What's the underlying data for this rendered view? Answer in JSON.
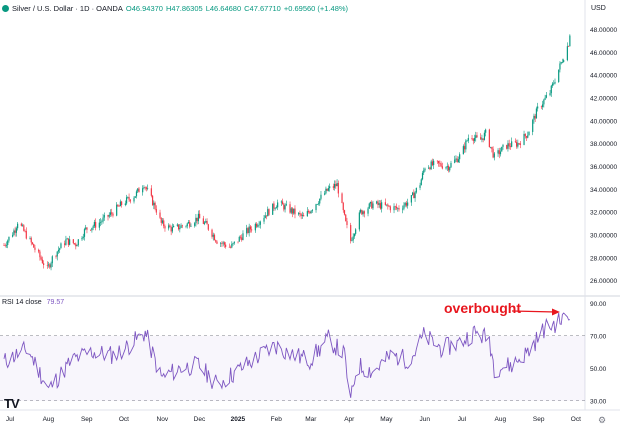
{
  "header": {
    "instrument": "Silver / U.S. Dollar · 1D · OANDA",
    "open": "O46.94370",
    "high": "H47.86305",
    "low": "L46.64680",
    "close": "C47.67710",
    "change": "+0.69560 (+1.48%)"
  },
  "currency_label": "USD",
  "rsi": {
    "label": "RSI 14 close",
    "value": "79.57"
  },
  "annotation": "overbought",
  "logo": "TV",
  "colors": {
    "up": "#089981",
    "down": "#f23645",
    "rsi": "#7e57c2",
    "annotation": "#e8161e"
  },
  "chart_data": [
    {
      "type": "candlestick",
      "title": "",
      "x_ticks": [
        "Jul",
        "Aug",
        "Sep",
        "Oct",
        "Nov",
        "Dec",
        "2025",
        "Feb",
        "Mar",
        "Apr",
        "May",
        "Jun",
        "Jul",
        "Aug",
        "Sep",
        "Oct"
      ],
      "y_ticks": [
        "26.00000",
        "28.00000",
        "30.00000",
        "32.00000",
        "34.00000",
        "36.00000",
        "38.00000",
        "40.00000",
        "42.00000",
        "44.00000",
        "46.00000",
        "48.00000"
      ],
      "ylim": [
        25,
        49
      ],
      "close_path_x": [
        "2024-07-01",
        "2024-07-10",
        "2024-07-12",
        "2024-07-20",
        "2024-08-05",
        "2024-08-10",
        "2024-08-20",
        "2024-08-28",
        "2024-09-05",
        "2024-09-15",
        "2024-09-25",
        "2024-10-05",
        "2024-10-15",
        "2024-10-22",
        "2024-11-01",
        "2024-11-05",
        "2024-11-14",
        "2024-11-25",
        "2024-12-05",
        "2024-12-12",
        "2024-12-20",
        "2024-12-31",
        "2025-01-10",
        "2025-01-20",
        "2025-01-30",
        "2025-02-07",
        "2025-02-15",
        "2025-02-28",
        "2025-03-10",
        "2025-03-20",
        "2025-03-27",
        "2025-04-03",
        "2025-04-07",
        "2025-04-15",
        "2025-04-25",
        "2025-05-05",
        "2025-05-15",
        "2025-05-25",
        "2025-06-02",
        "2025-06-06",
        "2025-06-15",
        "2025-06-25",
        "2025-07-05",
        "2025-07-12",
        "2025-07-20",
        "2025-07-25",
        "2025-08-01",
        "2025-08-10",
        "2025-08-20",
        "2025-08-28",
        "2025-09-05",
        "2025-09-15",
        "2025-09-22",
        "2025-09-30",
        "2025-10-01"
      ],
      "close_path_y": [
        29.1,
        30.5,
        31.2,
        29.8,
        27.0,
        28.2,
        29.5,
        29.2,
        30.5,
        31.0,
        31.8,
        32.8,
        33.5,
        34.5,
        32.2,
        31.0,
        30.5,
        30.9,
        31.5,
        30.8,
        29.5,
        28.9,
        30.0,
        30.9,
        32.0,
        32.8,
        32.3,
        31.5,
        32.8,
        34.0,
        34.4,
        31.0,
        29.5,
        32.0,
        32.7,
        32.5,
        32.3,
        33.0,
        34.5,
        36.0,
        36.2,
        36.0,
        37.0,
        38.8,
        38.2,
        38.9,
        36.8,
        37.8,
        38.0,
        38.9,
        41.0,
        42.5,
        44.5,
        46.8,
        47.68
      ],
      "series": [
        {
          "values_from": "close_path",
          "style": "candles"
        }
      ]
    },
    {
      "type": "line",
      "title": "",
      "ylabel": "RSI 14 close",
      "y_ticks": [
        "30.00",
        "50.00",
        "70.00",
        "90.00"
      ],
      "reference_lines": [
        30,
        70
      ],
      "ylim": [
        28,
        92
      ],
      "x": [
        "2024-07",
        "2024-07-20",
        "2024-08-06",
        "2024-08-25",
        "2024-09-10",
        "2024-09-28",
        "2024-10-10",
        "2024-10-23",
        "2024-11-05",
        "2024-11-20",
        "2024-12-05",
        "2024-12-20",
        "2025-01-05",
        "2025-01-20",
        "2025-02-05",
        "2025-02-20",
        "2025-03-05",
        "2025-03-20",
        "2025-04-02",
        "2025-04-07",
        "2025-04-12",
        "2025-04-25",
        "2025-05-10",
        "2025-05-25",
        "2025-06-05",
        "2025-06-20",
        "2025-07-05",
        "2025-07-15",
        "2025-07-28",
        "2025-08-01",
        "2025-08-15",
        "2025-08-28",
        "2025-09-10",
        "2025-09-20",
        "2025-09-30",
        "2025-10-01"
      ],
      "y": [
        54,
        62,
        37,
        55,
        60,
        58,
        64,
        72,
        44,
        50,
        52,
        40,
        48,
        56,
        64,
        58,
        55,
        68,
        58,
        29,
        52,
        48,
        58,
        55,
        70,
        62,
        66,
        72,
        68,
        50,
        52,
        60,
        74,
        78,
        82,
        79.57
      ],
      "series": [
        {
          "name": "RSI 14 close",
          "color": "#7e57c2"
        }
      ]
    }
  ]
}
